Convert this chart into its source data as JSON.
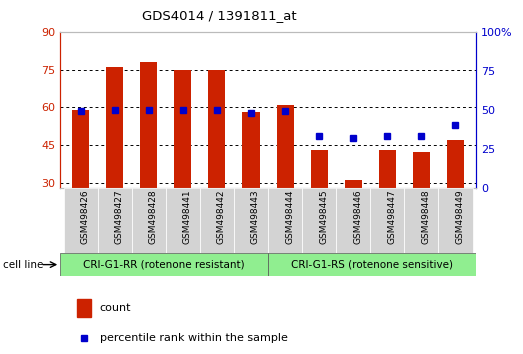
{
  "title": "GDS4014 / 1391811_at",
  "samples": [
    "GSM498426",
    "GSM498427",
    "GSM498428",
    "GSM498441",
    "GSM498442",
    "GSM498443",
    "GSM498444",
    "GSM498445",
    "GSM498446",
    "GSM498447",
    "GSM498448",
    "GSM498449"
  ],
  "counts": [
    59,
    76,
    78,
    75,
    75,
    58,
    61,
    43,
    31,
    43,
    42,
    47
  ],
  "percentile_ranks": [
    49,
    50,
    50,
    50,
    50,
    48,
    49,
    33,
    32,
    33,
    33,
    40
  ],
  "group1_label": "CRI-G1-RR (rotenone resistant)",
  "group2_label": "CRI-G1-RS (rotenone sensitive)",
  "group1_count": 6,
  "group2_count": 6,
  "bar_color": "#cc2200",
  "dot_color": "#0000cc",
  "ylim_left": [
    28,
    90
  ],
  "ylim_right": [
    0,
    100
  ],
  "yticks_left": [
    30,
    45,
    60,
    75,
    90
  ],
  "yticks_right": [
    0,
    25,
    50,
    75,
    100
  ],
  "yticklabels_left": [
    "30",
    "45",
    "60",
    "75",
    "90"
  ],
  "yticklabels_right": [
    "0",
    "25",
    "50",
    "75",
    "100%"
  ],
  "grid_color": "#000000",
  "background_color": "#ffffff",
  "plot_bg_color": "#ffffff",
  "tick_bg_color": "#d3d3d3",
  "group_color": "#90ee90",
  "cell_line_label": "cell line",
  "legend_count_label": "count",
  "legend_pct_label": "percentile rank within the sample",
  "bar_width": 0.5,
  "left_label_color": "#cc2200",
  "right_label_color": "#0000cc",
  "left_spine_color": "#cc2200",
  "right_spine_color": "#0000cc"
}
